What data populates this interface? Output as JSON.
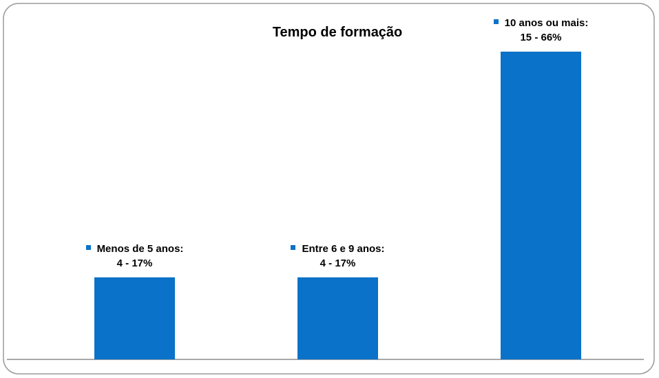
{
  "chart_data": {
    "type": "bar",
    "title": "Tempo de formação",
    "categories": [
      "Menos de 5 anos:",
      "Entre 6 e 9 anos:",
      "10 anos ou mais:"
    ],
    "values": [
      4,
      4,
      15
    ],
    "value_labels": [
      "4  - 17%",
      "4 - 17%",
      "15 - 66%"
    ],
    "color": "#0a72c8"
  }
}
